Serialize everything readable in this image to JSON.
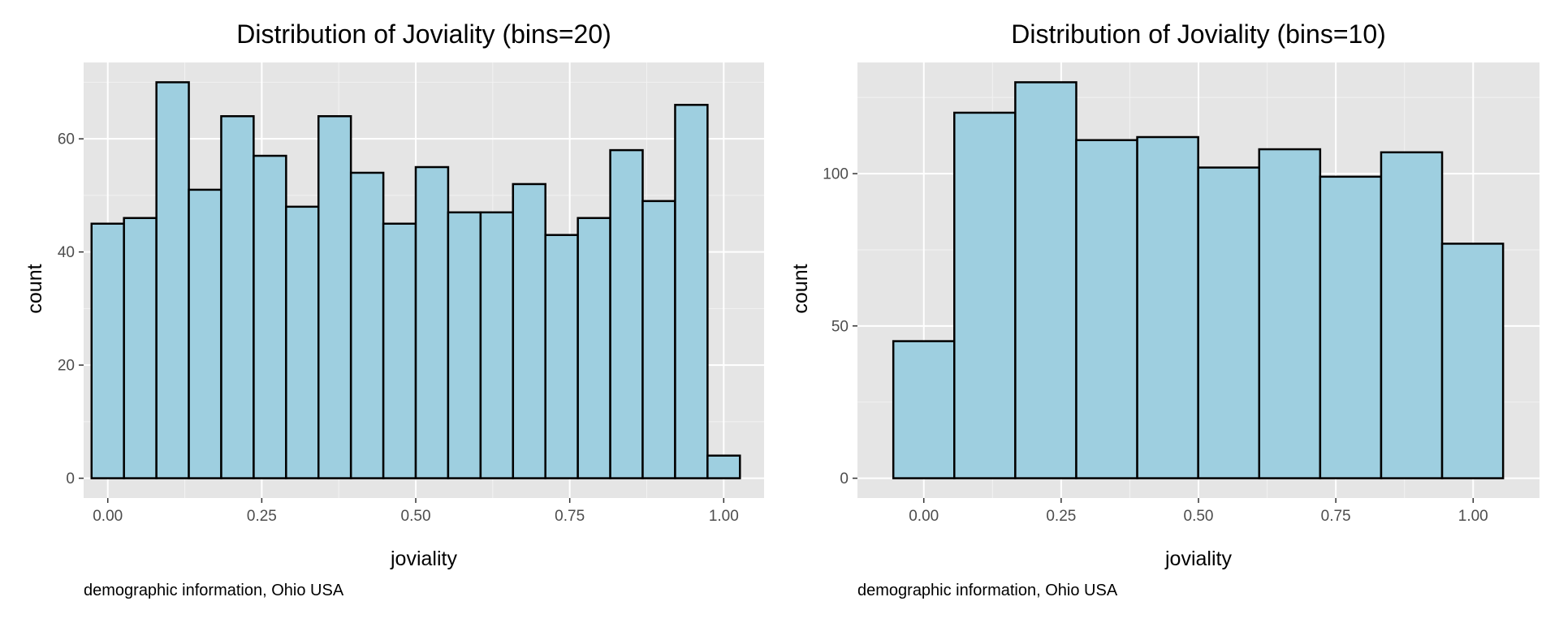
{
  "chart_data": [
    {
      "type": "bar",
      "title": "Distribution of Joviality (bins=20)",
      "xlabel": "joviality",
      "ylabel": "count",
      "caption": "demographic information, Ohio USA",
      "bins": 20,
      "bin_width": 0.05263,
      "x": [
        0.0,
        0.0526,
        0.1053,
        0.1579,
        0.2105,
        0.2632,
        0.3158,
        0.3684,
        0.4211,
        0.4737,
        0.5263,
        0.5789,
        0.6316,
        0.6842,
        0.7368,
        0.7895,
        0.8421,
        0.8947,
        0.9474,
        1.0
      ],
      "values": [
        45,
        46,
        70,
        51,
        64,
        57,
        48,
        64,
        54,
        45,
        55,
        47,
        47,
        52,
        43,
        46,
        58,
        49,
        66,
        4
      ],
      "xlim": [
        -0.0392,
        1.0655
      ],
      "ylim": [
        -3.5,
        73.5
      ],
      "x_ticks": [
        {
          "value": 0.0,
          "label": "0.00"
        },
        {
          "value": 0.25,
          "label": "0.25"
        },
        {
          "value": 0.5,
          "label": "0.50"
        },
        {
          "value": 0.75,
          "label": "0.75"
        },
        {
          "value": 1.0,
          "label": "1.00"
        }
      ],
      "y_ticks": [
        {
          "value": 0,
          "label": "0"
        },
        {
          "value": 20,
          "label": "20"
        },
        {
          "value": 40,
          "label": "40"
        },
        {
          "value": 60,
          "label": "60"
        }
      ],
      "grid": true,
      "colors": {
        "fill": "#9ecfe0",
        "outline": "#000000",
        "panel": "#e5e5e5"
      }
    },
    {
      "type": "bar",
      "title": "Distribution of Joviality (bins=10)",
      "xlabel": "joviality",
      "ylabel": "count",
      "caption": "demographic information, Ohio USA",
      "bins": 10,
      "bin_width": 0.111,
      "x": [
        0.0,
        0.111,
        0.222,
        0.333,
        0.444,
        0.555,
        0.666,
        0.777,
        0.888,
        0.999
      ],
      "values": [
        45,
        120,
        130,
        111,
        112,
        102,
        108,
        99,
        107,
        77
      ],
      "xlim": [
        -0.1208,
        1.1208
      ],
      "ylim": [
        -6.5,
        136.5
      ],
      "x_ticks": [
        {
          "value": 0.0,
          "label": "0.00"
        },
        {
          "value": 0.25,
          "label": "0.25"
        },
        {
          "value": 0.5,
          "label": "0.50"
        },
        {
          "value": 0.75,
          "label": "0.75"
        },
        {
          "value": 1.0,
          "label": "1.00"
        }
      ],
      "y_ticks": [
        {
          "value": 0,
          "label": "0"
        },
        {
          "value": 50,
          "label": "50"
        },
        {
          "value": 100,
          "label": "100"
        }
      ],
      "grid": true,
      "colors": {
        "fill": "#9ecfe0",
        "outline": "#000000",
        "panel": "#e5e5e5"
      }
    }
  ]
}
